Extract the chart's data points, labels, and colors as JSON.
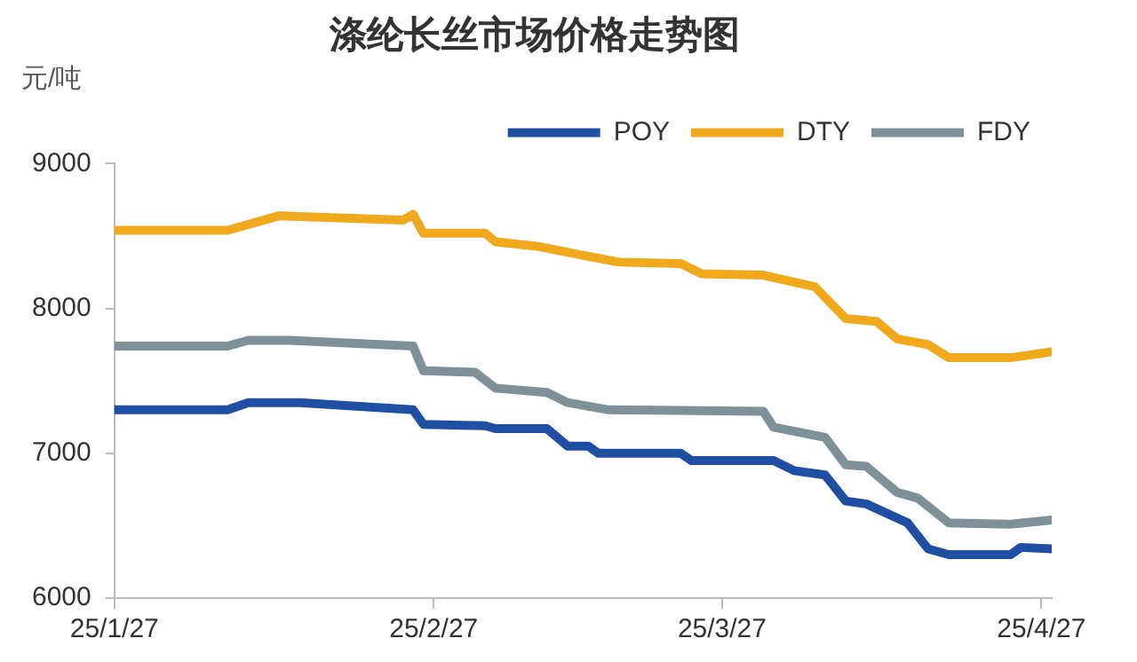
{
  "chart_data": {
    "type": "line",
    "title": "涤纶长丝市场价格走势图",
    "ylabel": "元/吨",
    "series": [
      {
        "name": "POY",
        "color": "#1f4ea3",
        "x": [
          "--01-27",
          "--02-07",
          "--02-09",
          "--02-14",
          "--02-25",
          "--02-26",
          "--03-04",
          "--03-05",
          "--03-10",
          "--03-12",
          "--03-14",
          "--03-15",
          "--03-23",
          "--03-24",
          "--04-01",
          "--04-03",
          "--04-06",
          "--04-08",
          "--04-10",
          "--04-14",
          "--04-16",
          "--04-18",
          "--04-24",
          "--04-25",
          "--04-28"
        ],
        "values": [
          7300,
          7300,
          7350,
          7350,
          7300,
          7200,
          7190,
          7170,
          7170,
          7050,
          7050,
          7000,
          7000,
          6950,
          6950,
          6880,
          6850,
          6670,
          6650,
          6520,
          6340,
          6300,
          6300,
          6350,
          6340
        ]
      },
      {
        "name": "DTY",
        "color": "#f0a81c",
        "x": [
          "--01-27",
          "--02-07",
          "--02-12",
          "--02-24",
          "--02-25",
          "--02-26",
          "--03-04",
          "--03-05",
          "--03-09",
          "--03-14",
          "--03-17",
          "--03-23",
          "--03-25",
          "--03-31",
          "--04-05",
          "--04-08",
          "--04-11",
          "--04-13",
          "--04-16",
          "--04-18",
          "--04-24",
          "--04-28"
        ],
        "values": [
          8540,
          8540,
          8640,
          8610,
          8650,
          8520,
          8520,
          8460,
          8430,
          8360,
          8320,
          8310,
          8240,
          8230,
          8150,
          7930,
          7910,
          7790,
          7750,
          7660,
          7660,
          7700
        ]
      },
      {
        "name": "FDY",
        "color": "#7f9096",
        "x": [
          "--01-27",
          "--02-07",
          "--02-09",
          "--02-13",
          "--02-25",
          "--02-26",
          "--03-03",
          "--03-05",
          "--03-10",
          "--03-12",
          "--03-16",
          "--03-31",
          "--04-01",
          "--04-06",
          "--04-08",
          "--04-10",
          "--04-13",
          "--04-15",
          "--04-18",
          "--04-24",
          "--04-28"
        ],
        "values": [
          7740,
          7740,
          7780,
          7780,
          7740,
          7570,
          7560,
          7450,
          7420,
          7350,
          7300,
          7290,
          7180,
          7110,
          6920,
          6910,
          6730,
          6690,
          6520,
          6510,
          6540
        ]
      }
    ],
    "xlim": [
      "--01-27",
      "--04-28"
    ],
    "xticks": [
      {
        "value": "--01-27",
        "label": "25/1/27"
      },
      {
        "value": "--02-27",
        "label": "25/2/27"
      },
      {
        "value": "--03-27",
        "label": "25/3/27"
      },
      {
        "value": "--04-27",
        "label": "25/4/27"
      }
    ],
    "ylim": [
      6000,
      9000
    ],
    "yticks": [
      6000,
      7000,
      8000,
      9000
    ],
    "grid": false,
    "legend": "top right",
    "marker": "none",
    "line_style": "solid"
  }
}
